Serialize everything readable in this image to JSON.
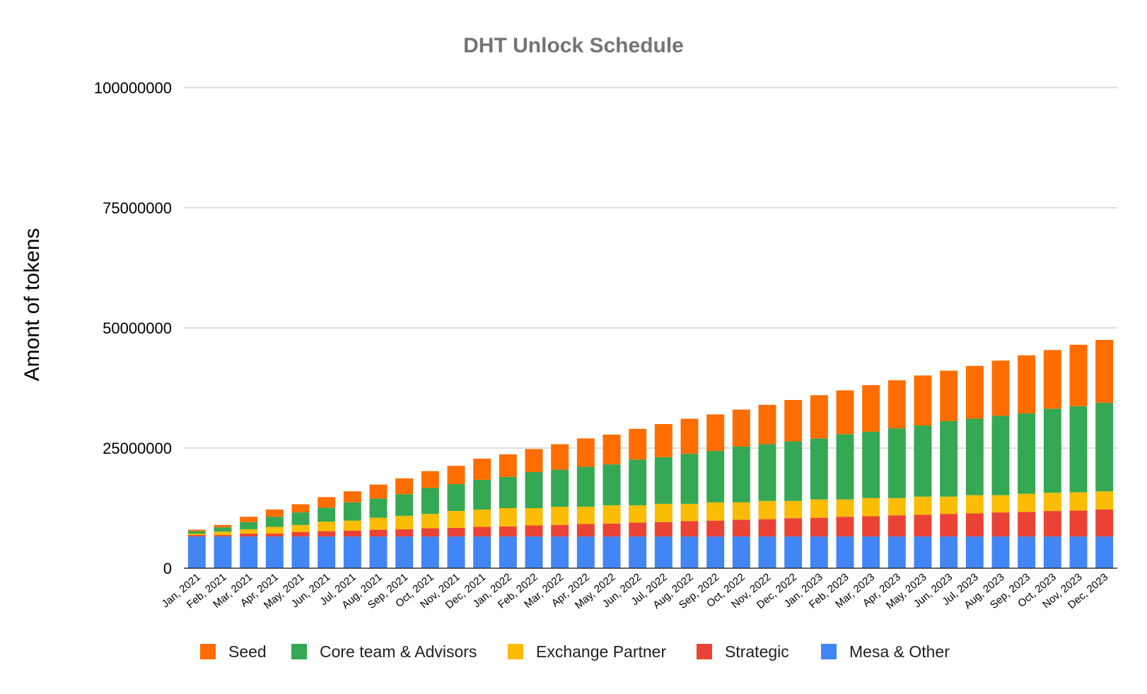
{
  "chart_data": {
    "type": "bar",
    "stacked": true,
    "title": "DHT Unlock Schedule",
    "xlabel": "",
    "ylabel": "Amont of tokens",
    "ylim": [
      0,
      100000000
    ],
    "yticks": [
      0,
      25000000,
      50000000,
      75000000,
      100000000
    ],
    "ytick_labels": [
      "0",
      "25000000",
      "50000000",
      "75000000",
      "100000000"
    ],
    "grid": true,
    "legend_position": "bottom",
    "categories": [
      "Jan, 2021",
      "Feb, 2021",
      "Mar, 2021",
      "Apr, 2021",
      "May, 2021",
      "Jun, 2021",
      "Jul, 2021",
      "Aug, 2021",
      "Sep, 2021",
      "Oct, 2021",
      "Nov, 2021",
      "Dec, 2021",
      "Jan, 2022",
      "Feb, 2022",
      "Mar, 2022",
      "Apr, 2022",
      "May, 2022",
      "Jun, 2022",
      "Jul, 2022",
      "Aug, 2022",
      "Sep, 2022",
      "Oct, 2022",
      "Nov, 2022",
      "Dec, 2022",
      "Jan, 2023",
      "Feb, 2023",
      "Mar, 2023",
      "Apr, 2023",
      "May, 2023",
      "Jun, 2023",
      "Jul, 2023",
      "Aug, 2023",
      "Sep, 2023",
      "Oct, 2023",
      "Nov, 2023",
      "Dec, 2023"
    ],
    "series": [
      {
        "name": "Mesa & Other",
        "color": "#4285F4",
        "values": [
          6600000,
          6600000,
          6600000,
          6600000,
          6600000,
          6600000,
          6600000,
          6600000,
          6600000,
          6600000,
          6600000,
          6600000,
          6600000,
          6600000,
          6600000,
          6600000,
          6600000,
          6600000,
          6600000,
          6600000,
          6600000,
          6600000,
          6600000,
          6600000,
          6600000,
          6600000,
          6600000,
          6600000,
          6600000,
          6600000,
          6600000,
          6600000,
          6600000,
          6600000,
          6600000,
          6600000
        ]
      },
      {
        "name": "Strategic",
        "color": "#EA4335",
        "values": [
          300000,
          300000,
          600000,
          600000,
          900000,
          1100000,
          1200000,
          1400000,
          1500000,
          1700000,
          1800000,
          2000000,
          2100000,
          2300000,
          2400000,
          2600000,
          2700000,
          2900000,
          3000000,
          3200000,
          3300000,
          3500000,
          3600000,
          3800000,
          3900000,
          4100000,
          4200000,
          4400000,
          4500000,
          4700000,
          4800000,
          5000000,
          5100000,
          5300000,
          5400000,
          5600000
        ]
      },
      {
        "name": "Exchange Partner",
        "color": "#FBBC04",
        "values": [
          300000,
          700000,
          900000,
          1400000,
          1500000,
          2000000,
          2100000,
          2500000,
          2800000,
          3000000,
          3500000,
          3600000,
          3800000,
          3600000,
          3800000,
          3600000,
          3800000,
          3600000,
          3800000,
          3600000,
          3800000,
          3600000,
          3800000,
          3600000,
          3800000,
          3600000,
          3800000,
          3600000,
          3800000,
          3600000,
          3800000,
          3600000,
          3800000,
          3800000,
          3800000,
          3800000
        ]
      },
      {
        "name": "Core team & Advisors",
        "color": "#34A853",
        "values": [
          500000,
          900000,
          1500000,
          2100000,
          2600000,
          2900000,
          3800000,
          4000000,
          4500000,
          5400000,
          5600000,
          6200000,
          6500000,
          7500000,
          7700000,
          8300000,
          8500000,
          9500000,
          9700000,
          10400000,
          10700000,
          11600000,
          11800000,
          12400000,
          12700000,
          13600000,
          13800000,
          14500000,
          14800000,
          15700000,
          15900000,
          16500000,
          16700000,
          17500000,
          17900000,
          18400000
        ]
      },
      {
        "name": "Seed",
        "color": "#FF6D01",
        "values": [
          300000,
          500000,
          1100000,
          1500000,
          1700000,
          2200000,
          2300000,
          2900000,
          3300000,
          3500000,
          3800000,
          4400000,
          4700000,
          4800000,
          5300000,
          5900000,
          6200000,
          6400000,
          6900000,
          7300000,
          7600000,
          7700000,
          8200000,
          8600000,
          9000000,
          9100000,
          9700000,
          10000000,
          10400000,
          10500000,
          11000000,
          11500000,
          12100000,
          12200000,
          12800000,
          13100000
        ]
      }
    ],
    "legend_order": [
      "Seed",
      "Core team & Advisors",
      "Exchange Partner",
      "Strategic",
      "Mesa & Other"
    ]
  }
}
